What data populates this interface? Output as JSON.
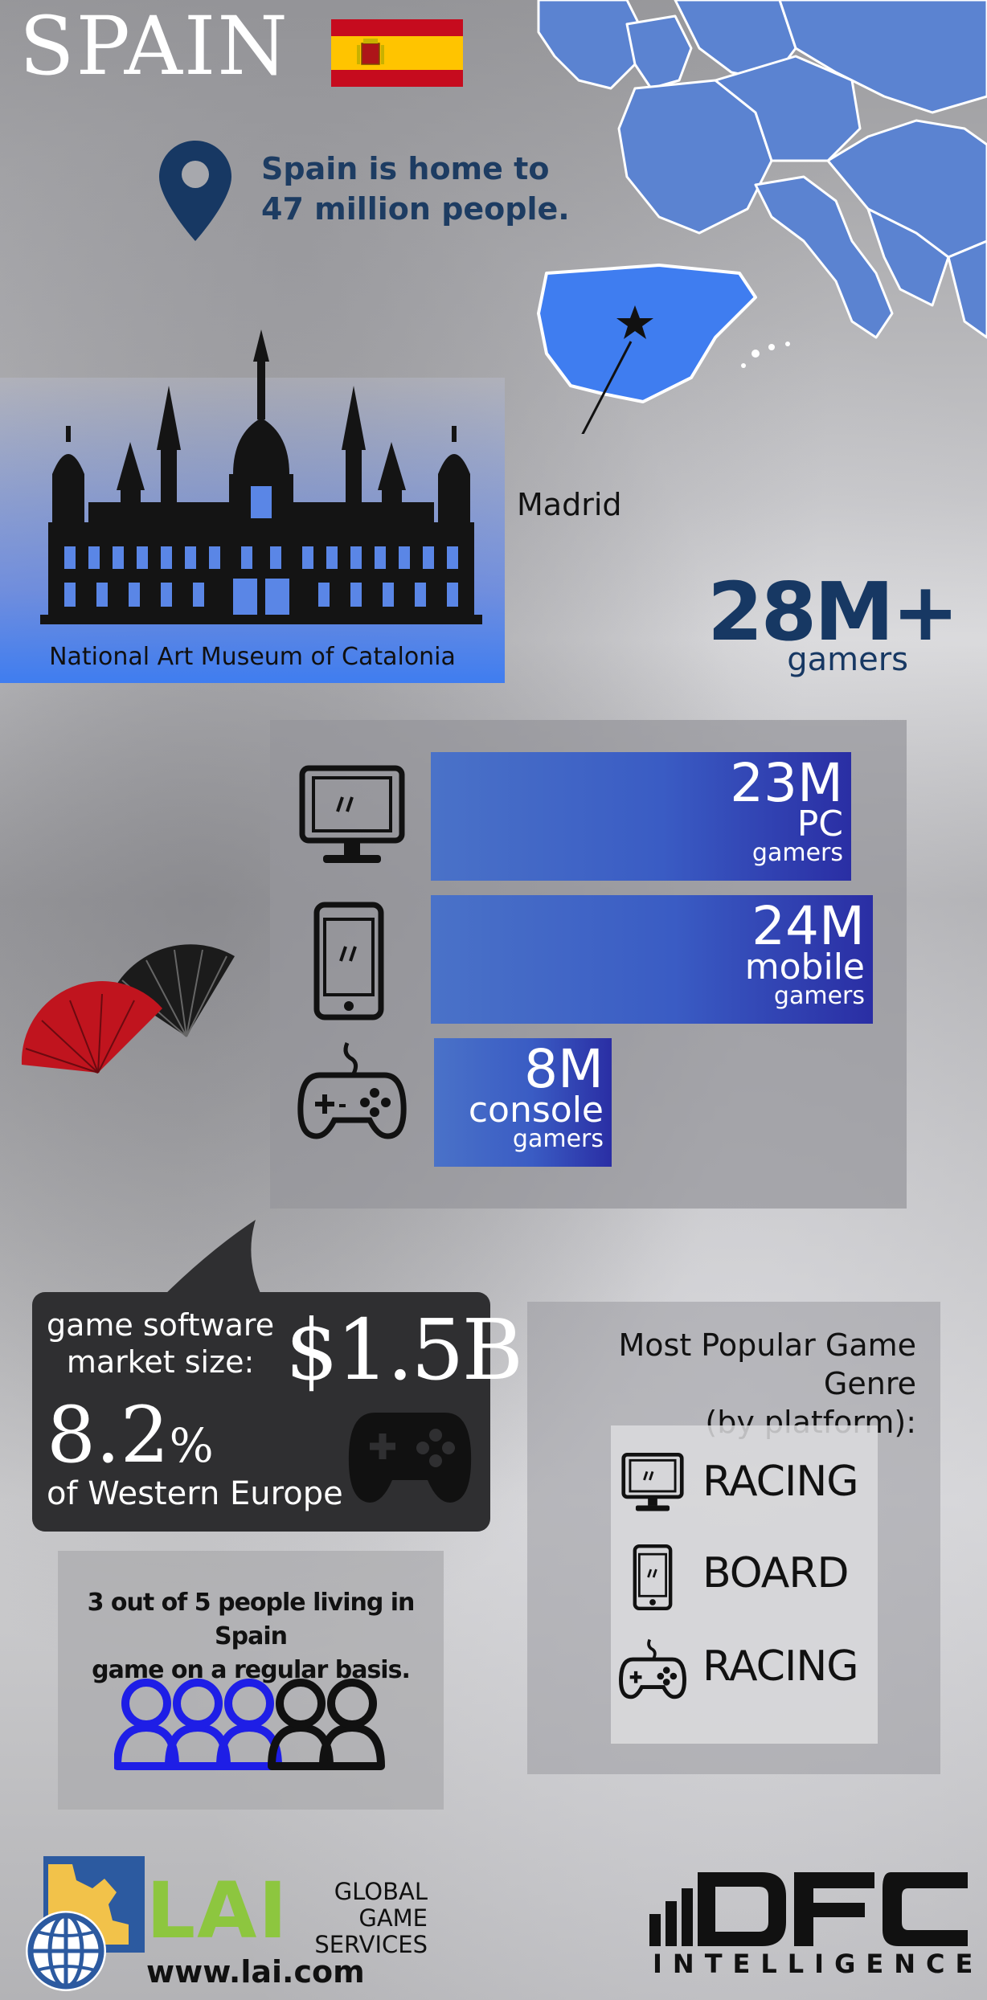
{
  "header": {
    "title": "SPAIN"
  },
  "population": {
    "line1": "Spain is home to",
    "line2": "47 million people."
  },
  "map": {
    "capital_label": "Madrid"
  },
  "museum": {
    "caption": "National Art Museum of Catalonia"
  },
  "total_gamers": {
    "value": "28M+",
    "label": "gamers"
  },
  "platforms": [
    {
      "icon": "monitor-icon",
      "value": "23M",
      "kind": "PC",
      "label": "gamers",
      "share": 0.958
    },
    {
      "icon": "phone-icon",
      "value": "24M",
      "kind": "mobile",
      "label": "gamers",
      "share": 1.0
    },
    {
      "icon": "gamepad-icon",
      "value": "8M",
      "kind": "console",
      "label": "gamers",
      "share": 0.333
    }
  ],
  "market": {
    "label_line1": "game software",
    "label_line2": "market size:",
    "value": "$1.5B",
    "percent": "8.2",
    "percent_sign": "%",
    "share_label": "of Western Europe"
  },
  "genres": {
    "title_line1": "Most Popular Game Genre",
    "title_line2": "(by platform):",
    "items": [
      {
        "icon": "monitor-icon",
        "label": "RACING"
      },
      {
        "icon": "phone-icon",
        "label": "BOARD"
      },
      {
        "icon": "gamepad-icon",
        "label": "RACING"
      }
    ]
  },
  "frequency": {
    "line1": "3 out of 5 people living in Spain",
    "line2": "game on a regular basis.",
    "highlighted": 3,
    "total": 5
  },
  "footer": {
    "lai_name": "LAI",
    "lai_sub_line1": "GLOBAL GAME",
    "lai_sub_line2": "SERVICES",
    "lai_url": "www.lai.com",
    "dfc_name": "DFC",
    "dfc_sub": "INTELLIGENCE"
  },
  "colors": {
    "accent_blue": "#3f7df0",
    "title_navy": "#173863",
    "bar_start": "#4a72c8",
    "bar_end": "#2a2ea4",
    "people_on": "#1e1ee6",
    "people_off": "#111111",
    "lai_green": "#8dc63f",
    "flag_red": "#c60b1e",
    "flag_yellow": "#ffc400"
  }
}
